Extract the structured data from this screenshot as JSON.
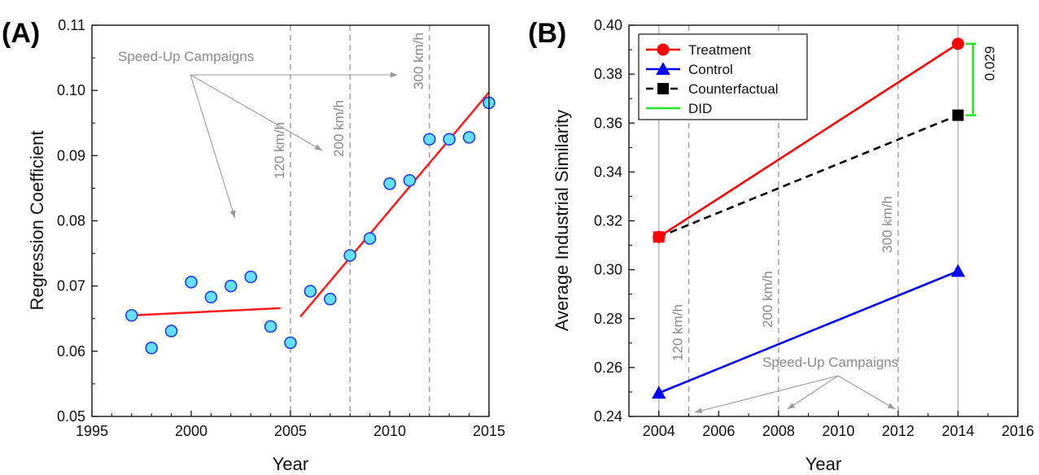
{
  "chart_data": [
    {
      "panel_label": "(A)",
      "type": "scatter",
      "xlabel": "Year",
      "ylabel": "Regression Coefficient",
      "xlim": [
        1995,
        2015
      ],
      "ylim": [
        0.05,
        0.11
      ],
      "xticks": [
        "1995",
        "2000",
        "2005",
        "2010",
        "2015"
      ],
      "yticks": [
        "0.05",
        "0.06",
        "0.07",
        "0.08",
        "0.09",
        "0.10",
        "0.11"
      ],
      "grid": false,
      "points": [
        {
          "x": 1997,
          "y": 0.0655
        },
        {
          "x": 1998,
          "y": 0.0605
        },
        {
          "x": 1999,
          "y": 0.0631
        },
        {
          "x": 2000,
          "y": 0.0706
        },
        {
          "x": 2001,
          "y": 0.0683
        },
        {
          "x": 2002,
          "y": 0.07
        },
        {
          "x": 2003,
          "y": 0.0714
        },
        {
          "x": 2004,
          "y": 0.0638
        },
        {
          "x": 2005,
          "y": 0.0613
        },
        {
          "x": 2006,
          "y": 0.0692
        },
        {
          "x": 2007,
          "y": 0.068
        },
        {
          "x": 2008,
          "y": 0.0747
        },
        {
          "x": 2009,
          "y": 0.0773
        },
        {
          "x": 2010,
          "y": 0.0857
        },
        {
          "x": 2011,
          "y": 0.0862
        },
        {
          "x": 2012,
          "y": 0.0925
        },
        {
          "x": 2013,
          "y": 0.0925
        },
        {
          "x": 2014,
          "y": 0.0928
        },
        {
          "x": 2015,
          "y": 0.0981
        }
      ],
      "fit_lines": [
        {
          "x": [
            1997,
            2004.5
          ],
          "y": [
            0.0655,
            0.0666
          ]
        },
        {
          "x": [
            2005.5,
            2015
          ],
          "y": [
            0.0653,
            0.0997
          ]
        }
      ],
      "vlines": [
        {
          "x": 2005,
          "label": "120 km/h"
        },
        {
          "x": 2008,
          "label": "200 km/h"
        },
        {
          "x": 2012,
          "label": "300 km/h"
        }
      ],
      "annotation": "Speed-Up Campaigns",
      "colors": {
        "points_fill": "#66e0ff",
        "points_edge": "#1f3cff",
        "fit": "#ff1a1a",
        "vline": "#aaaaaa",
        "annotation": "#8a8a8a"
      }
    },
    {
      "panel_label": "(B)",
      "type": "line",
      "xlabel": "Year",
      "ylabel": "Average Industrial Similarity",
      "xlim": [
        2003,
        2016
      ],
      "ylim": [
        0.24,
        0.4
      ],
      "xticks": [
        "2004",
        "2006",
        "2008",
        "2010",
        "2012",
        "2014",
        "2016"
      ],
      "yticks": [
        "0.24",
        "0.26",
        "0.28",
        "0.30",
        "0.32",
        "0.34",
        "0.36",
        "0.38",
        "0.40"
      ],
      "grid": false,
      "legend_position": "top-left",
      "series": [
        {
          "name": "Treatment",
          "marker": "circle",
          "color": "#ff0000",
          "dash": false,
          "x": [
            2004,
            2014
          ],
          "y": [
            0.3134,
            0.3924
          ]
        },
        {
          "name": "Control",
          "marker": "triangle",
          "color": "#0000ff",
          "dash": false,
          "x": [
            2004,
            2014
          ],
          "y": [
            0.2496,
            0.2994
          ]
        },
        {
          "name": "Counterfactual",
          "marker": "square",
          "color": "#000000",
          "dash": true,
          "x": [
            2004,
            2014
          ],
          "y": [
            0.3134,
            0.3632
          ]
        },
        {
          "name": "DID",
          "marker": "none",
          "color": "#22e622",
          "dash": false,
          "x": [
            2014.5,
            2014.5
          ],
          "y": [
            0.3632,
            0.3924
          ]
        }
      ],
      "did_label": "0.029",
      "vlines": [
        {
          "x": 2005,
          "label": "120 km/h"
        },
        {
          "x": 2008,
          "label": "200 km/h"
        },
        {
          "x": 2012,
          "label": "300 km/h"
        }
      ],
      "annotation": "Speed-Up Campaigns"
    }
  ]
}
